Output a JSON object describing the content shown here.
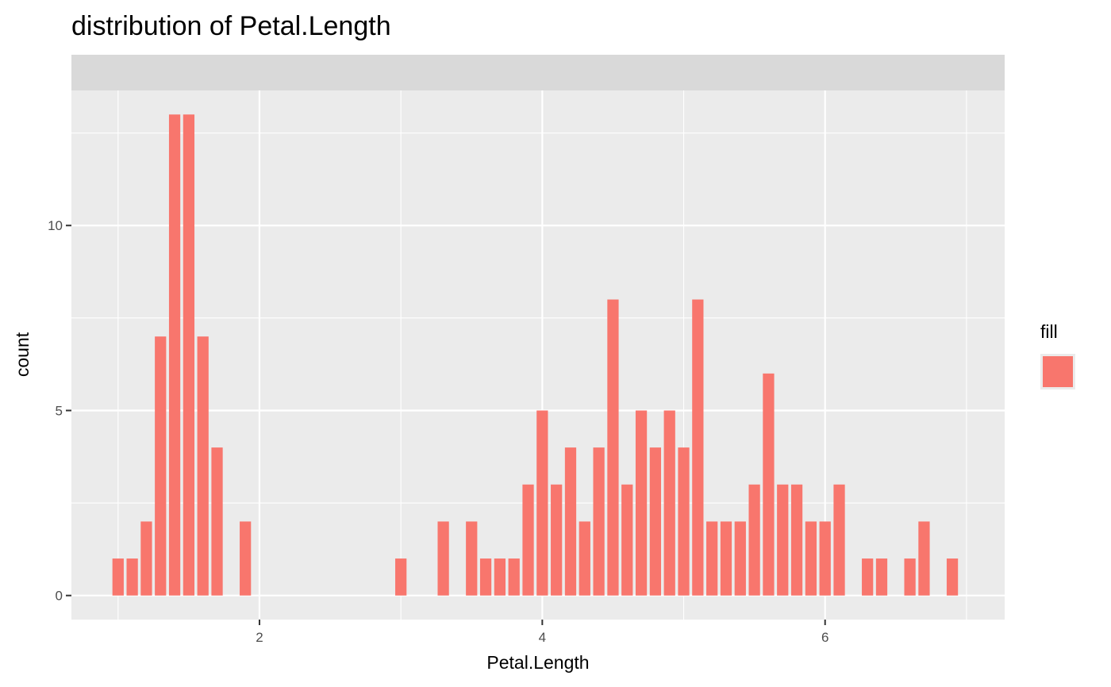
{
  "chart_data": {
    "type": "bar",
    "title": "distribution of Petal.Length",
    "xlabel": "Petal.Length",
    "ylabel": "count",
    "xlim": [
      0.67,
      7.27
    ],
    "ylim": [
      -0.65,
      13.65
    ],
    "x_ticks": [
      2,
      4,
      6
    ],
    "x_tick_labels": [
      "2",
      "4",
      "6"
    ],
    "y_ticks": [
      0,
      5,
      10
    ],
    "y_tick_labels": [
      "0",
      "5",
      "10"
    ],
    "grid": true,
    "facet_strip": "",
    "legend": {
      "title": "fill",
      "placement": "right",
      "entries": [
        {
          "label": "",
          "color": "#F8766D"
        }
      ]
    },
    "bar_color": "#F8766D",
    "bar_width": 0.08,
    "x": [
      1.0,
      1.1,
      1.2,
      1.3,
      1.4,
      1.5,
      1.6,
      1.7,
      1.9,
      3.0,
      3.3,
      3.5,
      3.6,
      3.7,
      3.8,
      3.9,
      4.0,
      4.1,
      4.2,
      4.3,
      4.4,
      4.5,
      4.6,
      4.7,
      4.8,
      4.9,
      5.0,
      5.1,
      5.2,
      5.3,
      5.4,
      5.5,
      5.6,
      5.7,
      5.8,
      5.9,
      6.0,
      6.1,
      6.3,
      6.4,
      6.6,
      6.7,
      6.9
    ],
    "values": [
      1,
      1,
      2,
      7,
      13,
      13,
      7,
      4,
      2,
      1,
      2,
      2,
      1,
      1,
      1,
      3,
      5,
      3,
      4,
      2,
      4,
      8,
      3,
      5,
      4,
      5,
      4,
      8,
      2,
      2,
      2,
      3,
      6,
      3,
      3,
      2,
      2,
      3,
      1,
      1,
      1,
      2,
      1
    ]
  }
}
